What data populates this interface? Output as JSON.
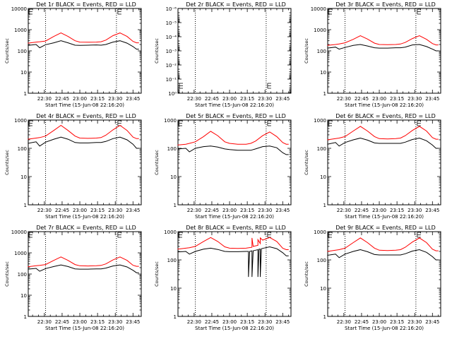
{
  "figure": {
    "x_tick_labels": [
      "22:30",
      "22:45",
      "23:00",
      "23:15",
      "23:30",
      "23:45"
    ],
    "x_label": "Start Time (15-Jun-08 22:16:20)",
    "y_label": "Counts/sec",
    "colors": {
      "events": "#000000",
      "lld": "#ff0000",
      "axes": "#000000"
    },
    "vertical_markers": [
      "22:31:00",
      "23:31:00"
    ]
  },
  "chart_data": [
    {
      "type": "line",
      "title": "Det 1r BLACK = Events, RED = LLD",
      "yscale": "log",
      "ylim": [
        1,
        10000
      ],
      "y_tick_labels": [
        "1",
        "10",
        "100",
        "1000",
        "10000"
      ],
      "xlim": [
        "22:16:20",
        "23:52:00"
      ],
      "series": [
        {
          "color": "#000000",
          "x": [
            "22:16",
            "22:23",
            "22:26",
            "22:31",
            "22:38",
            "22:44",
            "22:50",
            "22:56",
            "23:00",
            "23:07",
            "23:14",
            "23:18",
            "23:22",
            "23:28",
            "23:34",
            "23:40",
            "23:45",
            "23:48",
            "23:50"
          ],
          "y": [
            180,
            200,
            140,
            195,
            240,
            300,
            240,
            185,
            180,
            185,
            190,
            185,
            200,
            260,
            300,
            230,
            160,
            120,
            120
          ]
        },
        {
          "color": "#ff0000",
          "x": [
            "22:16",
            "22:23",
            "22:26",
            "22:31",
            "22:38",
            "22:44",
            "22:50",
            "22:56",
            "23:00",
            "23:07",
            "23:14",
            "23:18",
            "23:22",
            "23:28",
            "23:34",
            "23:40",
            "23:45",
            "23:48",
            "23:50"
          ],
          "y": [
            230,
            260,
            270,
            290,
            480,
            700,
            480,
            300,
            260,
            255,
            260,
            270,
            320,
            520,
            700,
            480,
            280,
            240,
            240
          ]
        }
      ]
    },
    {
      "type": "line",
      "title": "Det 2r BLACK = Events, RED = LLD",
      "yscale": "log",
      "ylim": [
        1,
        1e-06
      ],
      "y_tick_labels": [
        "10⁰",
        "10⁻¹",
        "10⁻²",
        "10⁻³",
        "10⁻⁴",
        "10⁻⁵",
        "10⁻⁶"
      ],
      "xlim": [
        "22:16:20",
        "23:52:00"
      ],
      "series": []
    },
    {
      "type": "line",
      "title": "Det 3r BLACK = Events, RED = LLD",
      "yscale": "log",
      "ylim": [
        1,
        10000
      ],
      "y_tick_labels": [
        "1",
        "10",
        "100",
        "1000",
        "10000"
      ],
      "xlim": [
        "22:16:20",
        "23:52:00"
      ],
      "series": [
        {
          "color": "#000000",
          "x": [
            "22:16",
            "22:23",
            "22:26",
            "22:31",
            "22:38",
            "22:44",
            "22:50",
            "22:56",
            "23:00",
            "23:07",
            "23:14",
            "23:18",
            "23:22",
            "23:28",
            "23:34",
            "23:40",
            "23:45",
            "23:48",
            "23:50"
          ],
          "y": [
            135,
            150,
            120,
            145,
            180,
            200,
            170,
            140,
            135,
            135,
            140,
            140,
            150,
            190,
            200,
            160,
            120,
            100,
            100
          ]
        },
        {
          "color": "#ff0000",
          "x": [
            "22:16",
            "22:23",
            "22:26",
            "22:31",
            "22:38",
            "22:44",
            "22:50",
            "22:56",
            "23:00",
            "23:07",
            "23:14",
            "23:18",
            "23:22",
            "23:28",
            "23:34",
            "23:40",
            "23:45",
            "23:48",
            "23:50"
          ],
          "y": [
            180,
            200,
            210,
            240,
            350,
            520,
            360,
            230,
            200,
            195,
            200,
            210,
            250,
            380,
            520,
            350,
            220,
            190,
            190
          ]
        }
      ]
    },
    {
      "type": "line",
      "title": "Det 4r BLACK = Events, RED = LLD",
      "yscale": "log",
      "ylim": [
        1,
        1000
      ],
      "y_tick_labels": [
        "1",
        "10",
        "100",
        "1000"
      ],
      "xlim": [
        "22:16:20",
        "23:52:00"
      ],
      "series": [
        {
          "color": "#000000",
          "x": [
            "22:16",
            "22:23",
            "22:26",
            "22:31",
            "22:38",
            "22:44",
            "22:50",
            "22:56",
            "23:00",
            "23:07",
            "23:14",
            "23:18",
            "23:22",
            "23:28",
            "23:34",
            "23:40",
            "23:45",
            "23:48",
            "23:50"
          ],
          "y": [
            150,
            170,
            120,
            165,
            210,
            250,
            210,
            160,
            155,
            155,
            160,
            160,
            175,
            220,
            250,
            200,
            140,
            100,
            100
          ]
        },
        {
          "color": "#ff0000",
          "x": [
            "22:16",
            "22:23",
            "22:26",
            "22:31",
            "22:38",
            "22:44",
            "22:50",
            "22:56",
            "23:00",
            "23:07",
            "23:14",
            "23:18",
            "23:22",
            "23:28",
            "23:34",
            "23:40",
            "23:45",
            "23:48",
            "23:50"
          ],
          "y": [
            210,
            230,
            240,
            270,
            430,
            650,
            430,
            270,
            230,
            225,
            230,
            240,
            290,
            450,
            650,
            430,
            250,
            220,
            220
          ]
        }
      ]
    },
    {
      "type": "line",
      "title": "Det 5r BLACK = Events, RED = LLD",
      "yscale": "log",
      "ylim": [
        1,
        1000
      ],
      "y_tick_labels": [
        "1",
        "10",
        "100",
        "1000"
      ],
      "xlim": [
        "22:16:20",
        "23:52:00"
      ],
      "series": [
        {
          "color": "#000000",
          "x": [
            "22:16",
            "22:23",
            "22:26",
            "22:31",
            "22:38",
            "22:44",
            "22:50",
            "22:56",
            "23:00",
            "23:07",
            "23:14",
            "23:18",
            "23:22",
            "23:28",
            "23:34",
            "23:40",
            "23:45",
            "23:48",
            "23:50"
          ],
          "y": [
            95,
            100,
            75,
            100,
            115,
            120,
            110,
            95,
            90,
            85,
            85,
            85,
            95,
            115,
            120,
            105,
            70,
            60,
            60
          ]
        },
        {
          "color": "#ff0000",
          "x": [
            "22:16",
            "22:23",
            "22:26",
            "22:31",
            "22:38",
            "22:44",
            "22:50",
            "22:56",
            "23:00",
            "23:07",
            "23:14",
            "23:18",
            "23:22",
            "23:28",
            "23:34",
            "23:40",
            "23:45",
            "23:48",
            "23:50"
          ],
          "y": [
            130,
            140,
            150,
            170,
            260,
            400,
            280,
            170,
            150,
            140,
            140,
            150,
            180,
            280,
            380,
            260,
            160,
            140,
            140
          ]
        }
      ]
    },
    {
      "type": "line",
      "title": "Det 6r BLACK = Events, RED = LLD",
      "yscale": "log",
      "ylim": [
        1,
        1000
      ],
      "y_tick_labels": [
        "1",
        "10",
        "100",
        "1000"
      ],
      "xlim": [
        "22:16:20",
        "23:52:00"
      ],
      "series": [
        {
          "color": "#000000",
          "x": [
            "22:16",
            "22:23",
            "22:26",
            "22:31",
            "22:38",
            "22:44",
            "22:50",
            "22:56",
            "23:00",
            "23:07",
            "23:14",
            "23:18",
            "23:22",
            "23:28",
            "23:34",
            "23:40",
            "23:45",
            "23:48",
            "23:50"
          ],
          "y": [
            140,
            160,
            120,
            160,
            200,
            230,
            195,
            155,
            150,
            150,
            150,
            150,
            165,
            205,
            230,
            185,
            130,
            100,
            100
          ]
        },
        {
          "color": "#ff0000",
          "x": [
            "22:16",
            "22:23",
            "22:26",
            "22:31",
            "22:38",
            "22:44",
            "22:50",
            "22:56",
            "23:00",
            "23:07",
            "23:14",
            "23:18",
            "23:22",
            "23:28",
            "23:34",
            "23:40",
            "23:45",
            "23:48",
            "23:50"
          ],
          "y": [
            200,
            220,
            230,
            260,
            410,
            600,
            410,
            260,
            220,
            215,
            220,
            230,
            280,
            430,
            600,
            410,
            240,
            210,
            210
          ]
        }
      ]
    },
    {
      "type": "line",
      "title": "Det 7r BLACK = Events, RED = LLD",
      "yscale": "log",
      "ylim": [
        1,
        10000
      ],
      "y_tick_labels": [
        "1",
        "10",
        "100",
        "1000",
        "10000"
      ],
      "xlim": [
        "22:16:20",
        "23:52:00"
      ],
      "series": [
        {
          "color": "#000000",
          "x": [
            "22:16",
            "22:23",
            "22:26",
            "22:31",
            "22:38",
            "22:44",
            "22:50",
            "22:56",
            "23:00",
            "23:07",
            "23:14",
            "23:18",
            "23:22",
            "23:28",
            "23:34",
            "23:40",
            "23:45",
            "23:48",
            "23:50"
          ],
          "y": [
            170,
            185,
            135,
            180,
            225,
            270,
            225,
            175,
            170,
            170,
            175,
            175,
            190,
            240,
            270,
            215,
            150,
            115,
            115
          ]
        },
        {
          "color": "#ff0000",
          "x": [
            "22:16",
            "22:23",
            "22:26",
            "22:31",
            "22:38",
            "22:44",
            "22:50",
            "22:56",
            "23:00",
            "23:07",
            "23:14",
            "23:18",
            "23:22",
            "23:28",
            "23:34",
            "23:40",
            "23:45",
            "23:48",
            "23:50"
          ],
          "y": [
            220,
            245,
            255,
            280,
            440,
            640,
            440,
            280,
            245,
            240,
            245,
            255,
            300,
            460,
            640,
            440,
            260,
            230,
            230
          ]
        }
      ]
    },
    {
      "type": "line",
      "title": "Det 8r BLACK = Events, RED = LLD",
      "yscale": "log",
      "ylim": [
        1,
        1000
      ],
      "y_tick_labels": [
        "1",
        "10",
        "100",
        "1000"
      ],
      "xlim": [
        "22:16:20",
        "23:52:00"
      ],
      "series": [
        {
          "color": "#000000",
          "x": [
            "22:16",
            "22:23",
            "22:26",
            "22:31",
            "22:38",
            "22:44",
            "22:50",
            "22:56",
            "23:00",
            "23:07",
            "23:14",
            "23:16",
            "23:16",
            "23:17",
            "23:19",
            "23:19",
            "23:20",
            "23:22",
            "23:24",
            "23:24",
            "23:25",
            "23:26",
            "23:26",
            "23:27",
            "23:28",
            "23:34",
            "23:40",
            "23:45",
            "23:48",
            "23:50"
          ],
          "y": [
            190,
            200,
            160,
            200,
            240,
            260,
            235,
            200,
            195,
            195,
            200,
            200,
            25,
            200,
            210,
            25,
            210,
            220,
            230,
            25,
            240,
            240,
            25,
            250,
            255,
            290,
            250,
            180,
            140,
            140
          ]
        },
        {
          "color": "#ff0000",
          "x": [
            "22:16",
            "22:23",
            "22:26",
            "22:31",
            "22:38",
            "22:44",
            "22:50",
            "22:56",
            "23:00",
            "23:07",
            "23:14",
            "23:19",
            "23:19",
            "23:20",
            "23:24",
            "23:24",
            "23:26",
            "23:26",
            "23:28",
            "23:34",
            "23:40",
            "23:45",
            "23:48",
            "23:50"
          ],
          "y": [
            240,
            260,
            270,
            300,
            450,
            620,
            450,
            290,
            260,
            255,
            260,
            280,
            600,
            300,
            330,
            520,
            380,
            600,
            500,
            620,
            450,
            260,
            230,
            230
          ]
        }
      ]
    },
    {
      "type": "line",
      "title": "Det 9r BLACK = Events, RED = LLD",
      "yscale": "log",
      "ylim": [
        1,
        1000
      ],
      "y_tick_labels": [
        "1",
        "10",
        "100",
        "1000"
      ],
      "xlim": [
        "22:16:20",
        "23:52:00"
      ],
      "series": [
        {
          "color": "#000000",
          "x": [
            "22:16",
            "22:23",
            "22:26",
            "22:31",
            "22:38",
            "22:44",
            "22:50",
            "22:56",
            "23:00",
            "23:07",
            "23:14",
            "23:18",
            "23:22",
            "23:28",
            "23:34",
            "23:40",
            "23:45",
            "23:48",
            "23:50"
          ],
          "y": [
            145,
            160,
            120,
            160,
            200,
            230,
            195,
            155,
            150,
            150,
            150,
            150,
            165,
            205,
            230,
            185,
            130,
            100,
            100
          ]
        },
        {
          "color": "#ff0000",
          "x": [
            "22:16",
            "22:23",
            "22:26",
            "22:31",
            "22:38",
            "22:44",
            "22:50",
            "22:56",
            "23:00",
            "23:07",
            "23:14",
            "23:18",
            "23:22",
            "23:28",
            "23:34",
            "23:40",
            "23:45",
            "23:48",
            "23:50"
          ],
          "y": [
            200,
            220,
            230,
            260,
            410,
            600,
            410,
            260,
            220,
            215,
            220,
            230,
            280,
            430,
            600,
            410,
            240,
            210,
            210
          ]
        }
      ]
    }
  ]
}
